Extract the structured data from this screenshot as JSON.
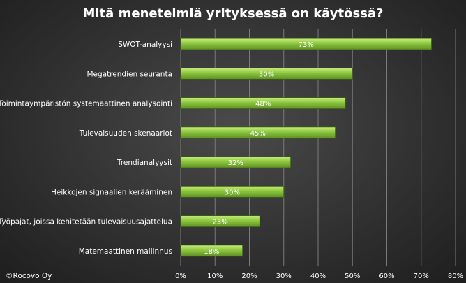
{
  "chart_data": {
    "type": "bar",
    "orientation": "horizontal",
    "title": "Mitä menetelmiä yrityksessä on käytössä?",
    "categories": [
      "SWOT-analyysi",
      "Megatrendien seuranta",
      "Toimintaympäristön systemaattinen analysointi",
      "Tulevaisuuden skenaariot",
      "Trendianalyysit",
      "Heikkojen signaalien kerääminen",
      "Työpajat, joissa kehitetään tulevaisuusajattelua",
      "Matemaattinen mallinnus"
    ],
    "values": [
      73,
      50,
      48,
      45,
      32,
      30,
      23,
      18
    ],
    "data_labels": [
      "73%",
      "50%",
      "48%",
      "45%",
      "32%",
      "30%",
      "23%",
      "18%"
    ],
    "xlim": [
      0,
      80
    ],
    "x_ticks": [
      0,
      10,
      20,
      30,
      40,
      50,
      60,
      70,
      80
    ],
    "x_tick_labels": [
      "0%",
      "10%",
      "20%",
      "30%",
      "40%",
      "50%",
      "60%",
      "70%",
      "80%"
    ],
    "grid": true,
    "bar_color": "#8dc63f"
  },
  "copyright": "©Rocovo Oy"
}
